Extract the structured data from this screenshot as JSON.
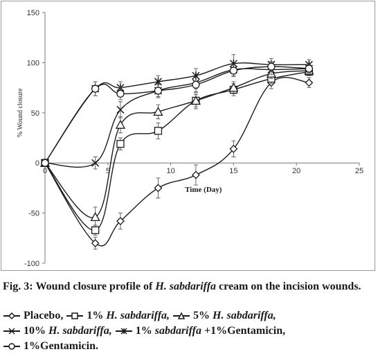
{
  "caption": {
    "fig_label": "Fig. 3:",
    "text_before_italic": "Wound closure profile of",
    "italic": "H. sabdariffa",
    "text_after_italic": "cream on the incision wounds."
  },
  "legend_items": [
    {
      "marker": "diamond",
      "pre": "",
      "italic": "",
      "post": "Placebo,"
    },
    {
      "marker": "square",
      "pre": "1%",
      "italic": "H. sabdariffa,",
      "post": ""
    },
    {
      "marker": "triangle",
      "pre": "5%",
      "italic": "H. sabdariffa,",
      "post": ""
    },
    {
      "marker": "x",
      "pre": "10%",
      "italic": "H. sabdariffa,",
      "post": ""
    },
    {
      "marker": "star",
      "pre": "1%",
      "italic": "sabdariffa",
      "post": "+1%Gentamicin,"
    },
    {
      "marker": "circle",
      "pre": "1%Gentamicin.",
      "italic": "",
      "post": ""
    }
  ],
  "chart_data": {
    "type": "line",
    "xlabel": "Time (Day)",
    "ylabel": "% Wound closure",
    "xlim": [
      0,
      25
    ],
    "ylim": [
      -100,
      150
    ],
    "xticks": [
      0,
      5,
      10,
      15,
      20,
      25
    ],
    "yticks": [
      -100,
      -50,
      0,
      50,
      100,
      150
    ],
    "grid": false,
    "line_color": "#1a1a1a",
    "x": [
      0,
      4,
      6,
      9,
      12,
      15,
      18,
      21
    ],
    "series": [
      {
        "name": "Placebo",
        "marker": "diamond",
        "values": [
          0,
          -80,
          -58,
          -25,
          -12,
          14,
          80,
          80
        ],
        "errors": [
          0,
          6,
          8,
          10,
          10,
          8,
          6,
          5
        ]
      },
      {
        "name": "1% H. sabdariffa",
        "marker": "square",
        "values": [
          0,
          -67,
          19,
          32,
          62,
          73,
          84,
          91
        ],
        "errors": [
          0,
          5,
          6,
          8,
          8,
          6,
          5,
          4
        ]
      },
      {
        "name": "5% H. sabdariffa",
        "marker": "triangle",
        "values": [
          0,
          -54,
          38,
          51,
          62,
          75,
          89,
          92
        ],
        "errors": [
          0,
          10,
          8,
          7,
          6,
          6,
          5,
          4
        ]
      },
      {
        "name": "10% H. sabdariffa",
        "marker": "x",
        "values": [
          0,
          0,
          53,
          72,
          80,
          93,
          93,
          94
        ],
        "errors": [
          0,
          6,
          8,
          7,
          6,
          6,
          5,
          4
        ]
      },
      {
        "name": "1% sabdariffa+1%Gentamicin",
        "marker": "star",
        "values": [
          0,
          74,
          75,
          81,
          87,
          99,
          98,
          98
        ],
        "errors": [
          0,
          7,
          6,
          6,
          7,
          9,
          6,
          5
        ]
      },
      {
        "name": "1%Gentamicin",
        "marker": "circle",
        "values": [
          0,
          74,
          69,
          72,
          78,
          92,
          96,
          94
        ],
        "errors": [
          0,
          7,
          6,
          6,
          7,
          6,
          5,
          4
        ]
      }
    ]
  }
}
